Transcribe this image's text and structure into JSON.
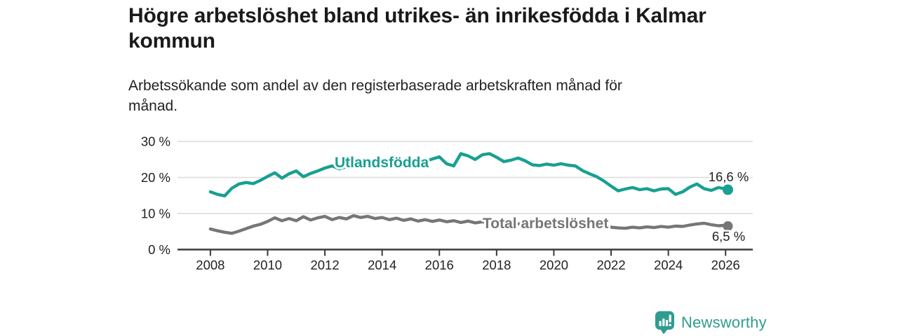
{
  "title": {
    "line1": "Högre arbetslöshet bland utrikes- än inrikesfödda i Kalmar",
    "line2": "kommun"
  },
  "subtitle": {
    "line1": "Arbetssökande som andel av den registerbaserade arbetskraften månad för",
    "line2": "månad."
  },
  "branding": {
    "name": "Newsworthy",
    "icon": "newsworthy-logo-icon",
    "color": "#2f9c90"
  },
  "colors": {
    "background": "#ffffff",
    "title_text": "#1a1a1a",
    "body_text": "#222222",
    "axis": "#3a3a3a",
    "gridline": "#dadada",
    "tick_label": "#222222",
    "utlandsfodda_line": "#18a091",
    "total_line": "#767676"
  },
  "chart_data": {
    "type": "line",
    "title": "Högre arbetslöshet bland utrikes- än inrikesfödda i Kalmar kommun",
    "subtitle": "Arbetssökande som andel av den registerbaserade arbetskraften månad för månad.",
    "xlabel": "",
    "ylabel": "",
    "grid": true,
    "legend_position": "inline-labels",
    "x_axis": {
      "ticks": [
        2008,
        2010,
        2012,
        2014,
        2016,
        2018,
        2020,
        2022,
        2024,
        2026
      ],
      "range": [
        2006.9,
        2026.95
      ]
    },
    "y_axis": {
      "ticks": [
        0,
        10,
        20,
        30
      ],
      "tick_suffix": " %",
      "range": [
        0,
        31
      ]
    },
    "x": [
      2008.0,
      2008.25,
      2008.5,
      2008.75,
      2009.0,
      2009.25,
      2009.5,
      2009.75,
      2010.0,
      2010.25,
      2010.5,
      2010.75,
      2011.0,
      2011.25,
      2011.5,
      2011.75,
      2012.0,
      2012.25,
      2012.5,
      2012.75,
      2013.0,
      2013.25,
      2013.5,
      2013.75,
      2014.0,
      2014.25,
      2014.5,
      2014.75,
      2015.0,
      2015.25,
      2015.5,
      2015.75,
      2016.0,
      2016.25,
      2016.5,
      2016.75,
      2017.0,
      2017.25,
      2017.5,
      2017.75,
      2018.0,
      2018.25,
      2018.5,
      2018.75,
      2019.0,
      2019.25,
      2019.5,
      2019.75,
      2020.0,
      2020.25,
      2020.5,
      2020.75,
      2021.0,
      2021.25,
      2021.5,
      2021.75,
      2022.0,
      2022.25,
      2022.5,
      2022.75,
      2023.0,
      2023.25,
      2023.5,
      2023.75,
      2024.0,
      2024.25,
      2024.5,
      2024.75,
      2025.0,
      2025.25,
      2025.5,
      2025.75,
      2026.0,
      2026.08
    ],
    "series": [
      {
        "id": "utlandsfodda",
        "label": "Utlandsfödda",
        "color": "#18a091",
        "end_label": "16,6 %",
        "end_value": 16.6,
        "values": [
          16.0,
          15.3,
          14.9,
          17.0,
          18.2,
          18.6,
          18.3,
          19.2,
          20.3,
          21.3,
          19.8,
          21.0,
          21.8,
          20.2,
          21.1,
          21.8,
          22.6,
          23.2,
          22.4,
          23.0,
          23.5,
          23.0,
          23.4,
          23.2,
          23.6,
          23.9,
          23.7,
          24.1,
          24.3,
          24.6,
          24.4,
          25.1,
          25.7,
          23.8,
          23.2,
          26.6,
          26.0,
          25.0,
          26.3,
          26.6,
          25.6,
          24.4,
          24.8,
          25.4,
          24.6,
          23.5,
          23.3,
          23.7,
          23.4,
          23.8,
          23.4,
          23.2,
          21.9,
          21.0,
          20.2,
          19.0,
          17.6,
          16.3,
          16.8,
          17.2,
          16.6,
          16.9,
          16.3,
          16.8,
          16.9,
          15.3,
          16.0,
          17.3,
          18.2,
          16.9,
          16.4,
          17.2,
          16.8,
          16.6
        ]
      },
      {
        "id": "total-arbetsloshet",
        "label": "Total arbetslöshet",
        "color": "#767676",
        "end_label": "6,5 %",
        "end_value": 6.5,
        "values": [
          5.7,
          5.2,
          4.8,
          4.5,
          5.1,
          5.8,
          6.5,
          7.0,
          7.8,
          8.8,
          8.0,
          8.6,
          8.0,
          9.1,
          8.2,
          8.8,
          9.2,
          8.3,
          8.9,
          8.5,
          9.4,
          8.9,
          9.2,
          8.6,
          8.9,
          8.3,
          8.7,
          8.1,
          8.5,
          7.9,
          8.3,
          7.8,
          8.2,
          7.7,
          8.0,
          7.5,
          7.9,
          7.4,
          7.7,
          7.3,
          7.6,
          7.2,
          7.5,
          7.1,
          7.4,
          7.0,
          7.2,
          6.9,
          7.1,
          8.0,
          8.3,
          7.9,
          7.5,
          7.1,
          6.8,
          6.5,
          6.2,
          6.0,
          5.9,
          6.2,
          6.0,
          6.3,
          6.1,
          6.4,
          6.2,
          6.5,
          6.4,
          6.8,
          7.1,
          7.3,
          6.9,
          6.6,
          6.7,
          6.5
        ]
      }
    ]
  }
}
